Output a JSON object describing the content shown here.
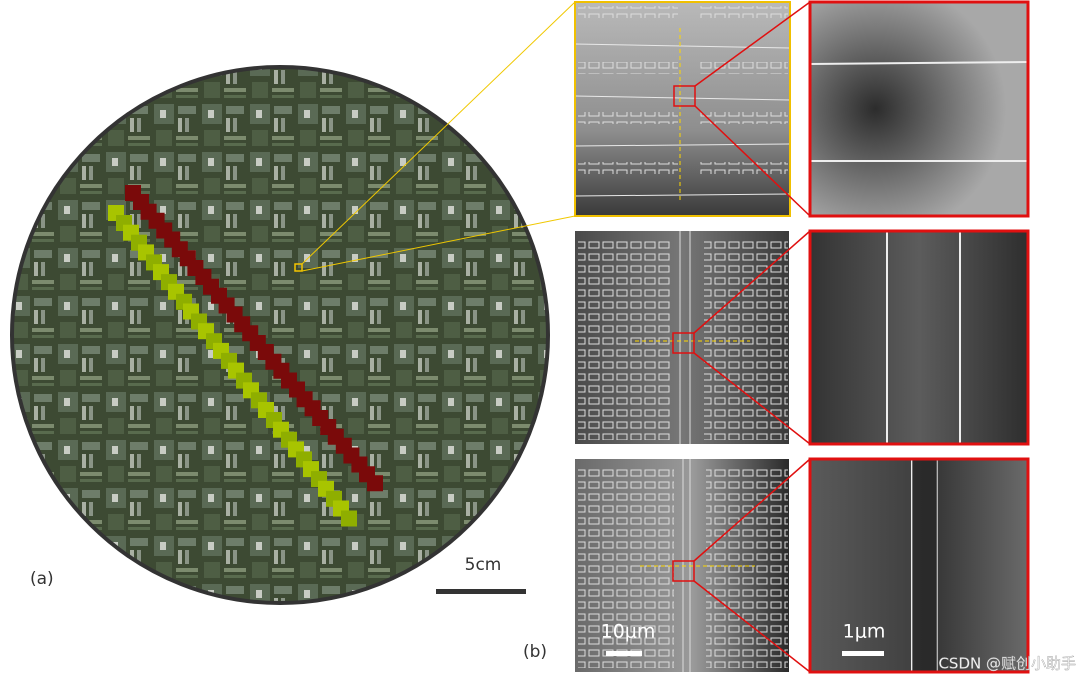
{
  "labels": {
    "a": "(a)",
    "b": "(b)"
  },
  "scale_bars": {
    "wafer": "5cm",
    "sem_low": "10μm",
    "sem_high": "1μm"
  },
  "watermark": "CSDN @赋创小助手"
}
